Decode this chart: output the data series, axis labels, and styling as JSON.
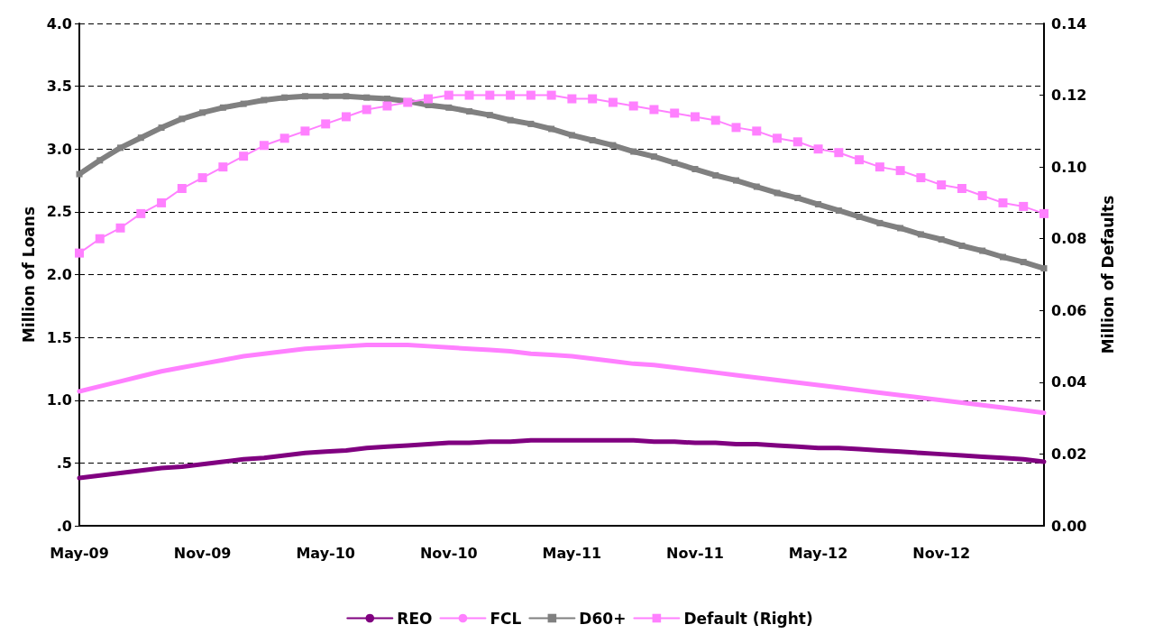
{
  "chart_data": {
    "type": "line",
    "ylabel": "Million of Loans",
    "y2label": "Million of Defaults",
    "categories": [
      "May-09",
      null,
      null,
      null,
      null,
      null,
      "Nov-09",
      null,
      null,
      null,
      null,
      null,
      "May-10",
      null,
      null,
      null,
      null,
      null,
      "Nov-10",
      null,
      null,
      null,
      null,
      null,
      "May-11",
      null,
      null,
      null,
      null,
      null,
      "Nov-11",
      null,
      null,
      null,
      null,
      null,
      "May-12",
      null,
      null,
      null,
      null,
      null,
      "Nov-12",
      null,
      null,
      null,
      null,
      null
    ],
    "ylim": [
      0,
      4
    ],
    "yticks": [
      {
        "value": 0,
        "label": ".0"
      },
      {
        "value": 0.5,
        "label": ".5"
      },
      {
        "value": 1,
        "label": "1.0"
      },
      {
        "value": 1.5,
        "label": "1.5"
      },
      {
        "value": 2,
        "label": "2.0"
      },
      {
        "value": 2.5,
        "label": "2.5"
      },
      {
        "value": 3,
        "label": "3.0"
      },
      {
        "value": 3.5,
        "label": "3.5"
      },
      {
        "value": 4,
        "label": "4.0"
      }
    ],
    "y2lim": [
      0,
      0.14
    ],
    "y2ticks": [
      {
        "value": 0,
        "label": "0.00"
      },
      {
        "value": 0.02,
        "label": "0.02"
      },
      {
        "value": 0.04,
        "label": "0.04"
      },
      {
        "value": 0.06,
        "label": "0.06"
      },
      {
        "value": 0.08,
        "label": "0.08"
      },
      {
        "value": 0.1,
        "label": "0.10"
      },
      {
        "value": 0.12,
        "label": "0.12"
      },
      {
        "value": 0.14,
        "label": "0.14"
      }
    ],
    "grid": "y",
    "legend": "bottom",
    "series": [
      {
        "name": "REO",
        "color": "#800080",
        "marker": "none",
        "values": [
          0.38,
          0.4,
          0.42,
          0.44,
          0.46,
          0.47,
          0.49,
          0.51,
          0.53,
          0.54,
          0.56,
          0.58,
          0.59,
          0.6,
          0.62,
          0.63,
          0.64,
          0.65,
          0.66,
          0.66,
          0.67,
          0.67,
          0.68,
          0.68,
          0.68,
          0.68,
          0.68,
          0.68,
          0.67,
          0.67,
          0.66,
          0.66,
          0.65,
          0.65,
          0.64,
          0.63,
          0.62,
          0.62,
          0.61,
          0.6,
          0.59,
          0.58,
          0.57,
          0.56,
          0.55,
          0.54,
          0.53,
          0.51
        ]
      },
      {
        "name": "FCL",
        "color": "#ff80ff",
        "marker": "none",
        "values": [
          1.07,
          1.11,
          1.15,
          1.19,
          1.23,
          1.26,
          1.29,
          1.32,
          1.35,
          1.37,
          1.39,
          1.41,
          1.42,
          1.43,
          1.44,
          1.44,
          1.44,
          1.43,
          1.42,
          1.41,
          1.4,
          1.39,
          1.37,
          1.36,
          1.35,
          1.33,
          1.31,
          1.29,
          1.28,
          1.26,
          1.24,
          1.22,
          1.2,
          1.18,
          1.16,
          1.14,
          1.12,
          1.1,
          1.08,
          1.06,
          1.04,
          1.02,
          1.0,
          0.98,
          0.96,
          0.94,
          0.92,
          0.9
        ]
      },
      {
        "name": "D60+",
        "color": "#808080",
        "marker": "square",
        "values": [
          2.8,
          2.91,
          3.01,
          3.09,
          3.17,
          3.24,
          3.29,
          3.33,
          3.36,
          3.39,
          3.41,
          3.42,
          3.42,
          3.42,
          3.41,
          3.4,
          3.38,
          3.35,
          3.33,
          3.3,
          3.27,
          3.23,
          3.2,
          3.16,
          3.11,
          3.07,
          3.03,
          2.98,
          2.94,
          2.89,
          2.84,
          2.79,
          2.75,
          2.7,
          2.65,
          2.61,
          2.56,
          2.51,
          2.46,
          2.41,
          2.37,
          2.32,
          2.28,
          2.23,
          2.19,
          2.14,
          2.1,
          2.05
        ]
      },
      {
        "name": "Default (Right)",
        "color": "#ff80ff",
        "marker": "square",
        "axis": "y2",
        "values": [
          0.076,
          0.08,
          0.083,
          0.087,
          0.09,
          0.094,
          0.097,
          0.1,
          0.103,
          0.106,
          0.108,
          0.11,
          0.112,
          0.114,
          0.116,
          0.117,
          0.118,
          0.119,
          0.12,
          0.12,
          0.12,
          0.12,
          0.12,
          0.12,
          0.119,
          0.119,
          0.118,
          0.117,
          0.116,
          0.115,
          0.114,
          0.113,
          0.111,
          0.11,
          0.108,
          0.107,
          0.105,
          0.104,
          0.102,
          0.1,
          0.099,
          0.097,
          0.095,
          0.094,
          0.092,
          0.09,
          0.089,
          0.087
        ]
      }
    ]
  }
}
